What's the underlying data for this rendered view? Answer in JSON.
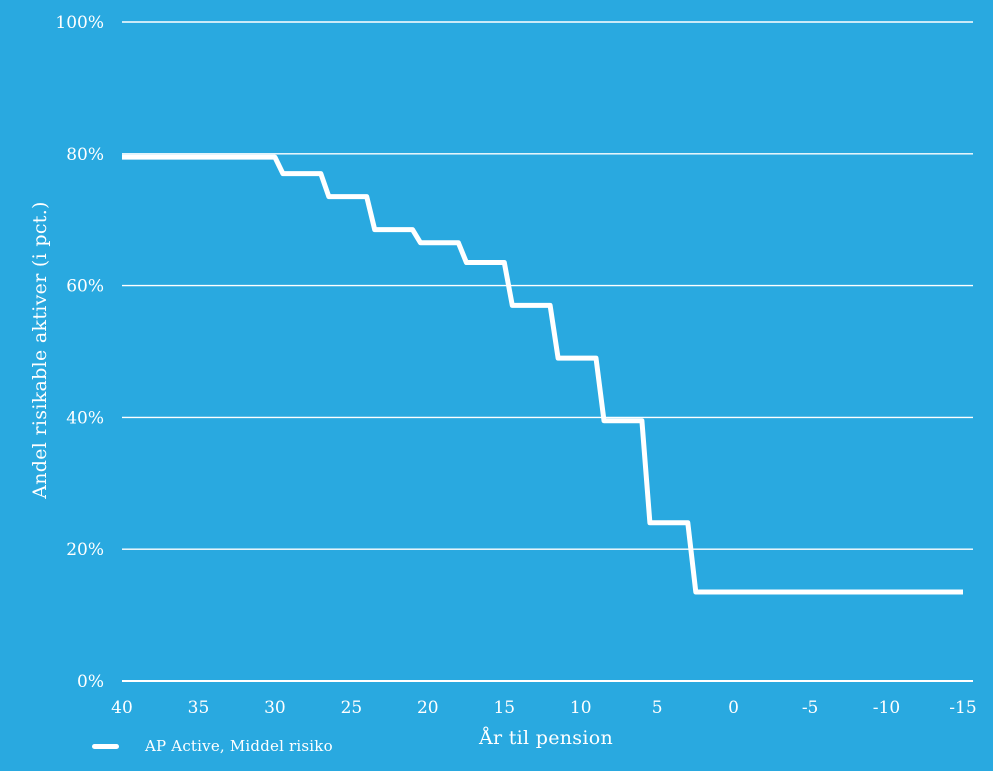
{
  "colors": {
    "background": "#29A9E0",
    "foreground": "#FFFFFF",
    "series_line": "#FFFFFF"
  },
  "chart_data": {
    "type": "line",
    "subtype": "step",
    "title": "",
    "xlabel": "År til pension",
    "ylabel": "Andel risikable aktiver (i pct.)",
    "xlim": [
      40,
      -15
    ],
    "ylim": [
      0,
      100
    ],
    "x_ticks": [
      40,
      35,
      30,
      25,
      20,
      15,
      10,
      5,
      0,
      -5,
      -10,
      -15
    ],
    "x_tick_labels": [
      "40",
      "35",
      "30",
      "25",
      "20",
      "15",
      "10",
      "5",
      "0",
      "-5",
      "-10",
      "-15"
    ],
    "y_ticks_pct": [
      0,
      20,
      40,
      60,
      80,
      100
    ],
    "y_tick_labels": [
      "0%",
      "20%",
      "40%",
      "60%",
      "80%",
      "100%"
    ],
    "grid": "horizontal",
    "legend_position": "bottom-left",
    "series": [
      {
        "name": "AP Active, Middel risiko",
        "color": "#FFFFFF",
        "steps": [
          {
            "from_year": 40,
            "to_year": 30,
            "value_pct": 79.5
          },
          {
            "from_year": 30,
            "to_year": 27,
            "value_pct": 77
          },
          {
            "from_year": 27,
            "to_year": 24,
            "value_pct": 73.5
          },
          {
            "from_year": 24,
            "to_year": 21,
            "value_pct": 68.5
          },
          {
            "from_year": 21,
            "to_year": 18,
            "value_pct": 66.5
          },
          {
            "from_year": 18,
            "to_year": 15,
            "value_pct": 63.5
          },
          {
            "from_year": 15,
            "to_year": 12,
            "value_pct": 57
          },
          {
            "from_year": 12,
            "to_year": 9,
            "value_pct": 49
          },
          {
            "from_year": 9,
            "to_year": 6,
            "value_pct": 39.5
          },
          {
            "from_year": 6,
            "to_year": 3,
            "value_pct": 24
          },
          {
            "from_year": 3,
            "to_year": -15,
            "value_pct": 13.5
          }
        ]
      }
    ]
  }
}
